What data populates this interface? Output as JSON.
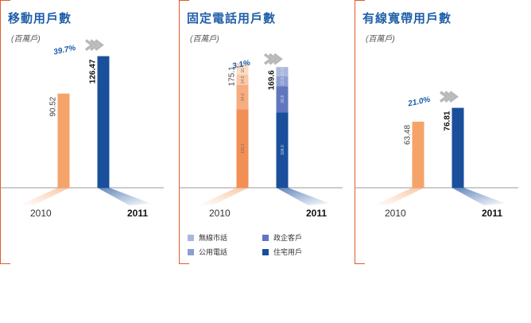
{
  "colors": {
    "accent_orange": "#e35a2b",
    "title_blue": "#1f5fa8",
    "bar_2010": "#f6a36a",
    "bar_2011": "#1a4f9c",
    "growth_blue": "#1a5dab",
    "chevron_grey": "#b8b8b8"
  },
  "panels": [
    {
      "title": "移動用戶數",
      "unit": "(百萬戶)"
    },
    {
      "title": "固定電話用戶數",
      "unit": "(百萬戶)"
    },
    {
      "title": "有線寬帶用戶數",
      "unit": "(百萬戶)"
    }
  ],
  "legend": {
    "items": [
      {
        "label": "無線市話",
        "color": "#aab7dd"
      },
      {
        "label": "政企客戶",
        "color": "#6077bf"
      },
      {
        "label": "公用電話",
        "color": "#8d9ed1"
      },
      {
        "label": "住宅用戶",
        "color": "#1a4f9c"
      }
    ]
  },
  "chart_data": [
    {
      "type": "bar",
      "title": "移動用戶數",
      "unit": "(百萬戶)",
      "categories": [
        "2010",
        "2011"
      ],
      "values": [
        90.52,
        126.47
      ],
      "value_labels": [
        "90.52",
        "126.47"
      ],
      "growth_label": "39.7%",
      "ylim": [
        0,
        130
      ]
    },
    {
      "type": "bar",
      "stacked": true,
      "title": "固定電話用戶數",
      "unit": "(百萬戶)",
      "categories": [
        "2010",
        "2011"
      ],
      "totals": [
        175.1,
        169.6
      ],
      "total_labels": [
        "175.1",
        "169.6"
      ],
      "growth_label": "3.1%",
      "series": [
        {
          "name": "住宅用戶",
          "values": [
            110.2,
            106.0
          ],
          "value_labels": [
            "110.2",
            "106.0"
          ],
          "colors": [
            "#f18f55",
            "#1a4f9c"
          ]
        },
        {
          "name": "政企客戶",
          "values": [
            34.0,
            36.8
          ],
          "value_labels": [
            "34.0",
            "36.8"
          ],
          "colors": [
            "#f6ad7f",
            "#6077bf"
          ]
        },
        {
          "name": "公用電話",
          "values": [
            14.5,
            13.9
          ],
          "value_labels": [
            "14.5",
            "13.9"
          ],
          "colors": [
            "#f9c8a8",
            "#8d9ed1"
          ]
        },
        {
          "name": "無線市話",
          "values": [
            16.4,
            12.9
          ],
          "value_labels": [
            "16.4",
            "12.9"
          ],
          "colors": [
            "#fbdcc6",
            "#aab7dd"
          ]
        }
      ],
      "ylim": [
        0,
        190
      ]
    },
    {
      "type": "bar",
      "title": "有線寬帶用戶數",
      "unit": "(百萬戶)",
      "categories": [
        "2010",
        "2011"
      ],
      "values": [
        63.48,
        76.81
      ],
      "value_labels": [
        "63.48",
        "76.81"
      ],
      "growth_label": "21.0%",
      "ylim": [
        0,
        130
      ]
    }
  ]
}
